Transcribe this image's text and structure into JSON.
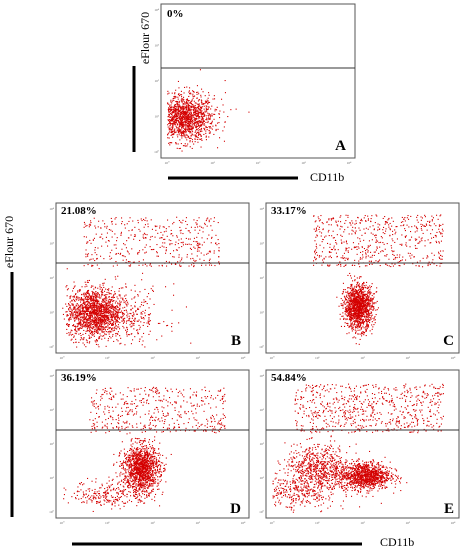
{
  "figure": {
    "ylabel": "eFlour 670",
    "xlabel": "CD11b",
    "tick_labels": [
      "10⁰",
      "10¹",
      "10²",
      "10³",
      "10⁴"
    ]
  },
  "chart_data": [
    {
      "type": "scatter",
      "panel": "A",
      "percentage": "0%",
      "xscale": "log",
      "yscale": "log",
      "xlim": [
        1,
        10000
      ],
      "ylim": [
        1,
        10000
      ],
      "xlabel": "CD11b",
      "ylabel": "eFlour 670",
      "gate_y": 250,
      "series": [
        {
          "color": "#d40000",
          "clusters": [
            {
              "x": 2.4,
              "y": 9,
              "sx": 0.32,
              "sy": 0.32,
              "n": 1300
            },
            {
              "x": 4,
              "y": 20,
              "sx": 0.4,
              "sy": 0.4,
              "n": 60
            }
          ],
          "events_above_gate": 0
        }
      ]
    },
    {
      "type": "scatter",
      "panel": "B",
      "percentage": "21.08%",
      "xscale": "log",
      "yscale": "log",
      "xlim": [
        1,
        10000
      ],
      "ylim": [
        1,
        10000
      ],
      "gate_y": 180,
      "series": [
        {
          "color": "#d40000",
          "clusters": [
            {
              "x": 5,
              "y": 10,
              "sx": 0.3,
              "sy": 0.36,
              "n": 1500
            },
            {
              "x": 25,
              "y": 8,
              "sx": 0.45,
              "sy": 0.45,
              "n": 300
            }
          ],
          "upper": {
            "x": [
              3,
              3000
            ],
            "y": [
              220,
              6000
            ],
            "n": 420
          }
        }
      ]
    },
    {
      "type": "scatter",
      "panel": "C",
      "percentage": "33.17%",
      "xscale": "log",
      "yscale": "log",
      "xlim": [
        1,
        10000
      ],
      "ylim": [
        1,
        10000
      ],
      "gate_y": 180,
      "series": [
        {
          "color": "#d40000",
          "clusters": [
            {
              "x": 80,
              "y": 15,
              "sx": 0.16,
              "sy": 0.32,
              "n": 1300
            }
          ],
          "upper": {
            "x": [
              8,
              6000
            ],
            "y": [
              220,
              7000
            ],
            "n": 550
          }
        }
      ]
    },
    {
      "type": "scatter",
      "panel": "D",
      "percentage": "36.19%",
      "xscale": "log",
      "yscale": "log",
      "xlim": [
        1,
        10000
      ],
      "ylim": [
        1,
        10000
      ],
      "gate_y": 180,
      "series": [
        {
          "color": "#d40000",
          "clusters": [
            {
              "x": 55,
              "y": 20,
              "sx": 0.2,
              "sy": 0.34,
              "n": 1300
            },
            {
              "x": 12,
              "y": 3.5,
              "sx": 0.45,
              "sy": 0.2,
              "n": 250
            }
          ],
          "upper": {
            "x": [
              4,
              4000
            ],
            "y": [
              220,
              5000
            ],
            "n": 450
          }
        }
      ]
    },
    {
      "type": "scatter",
      "panel": "E",
      "percentage": "54.84%",
      "xscale": "log",
      "yscale": "log",
      "xlim": [
        1,
        10000
      ],
      "ylim": [
        1,
        10000
      ],
      "gate_y": 180,
      "series": [
        {
          "color": "#d40000",
          "clusters": [
            {
              "x": 110,
              "y": 12,
              "sx": 0.28,
              "sy": 0.2,
              "n": 1100
            },
            {
              "x": 10,
              "y": 18,
              "sx": 0.36,
              "sy": 0.36,
              "n": 700
            },
            {
              "x": 3,
              "y": 3.5,
              "sx": 0.45,
              "sy": 0.3,
              "n": 300
            }
          ],
          "upper": {
            "x": [
              3,
              6000
            ],
            "y": [
              220,
              6000
            ],
            "n": 650
          }
        }
      ]
    }
  ]
}
